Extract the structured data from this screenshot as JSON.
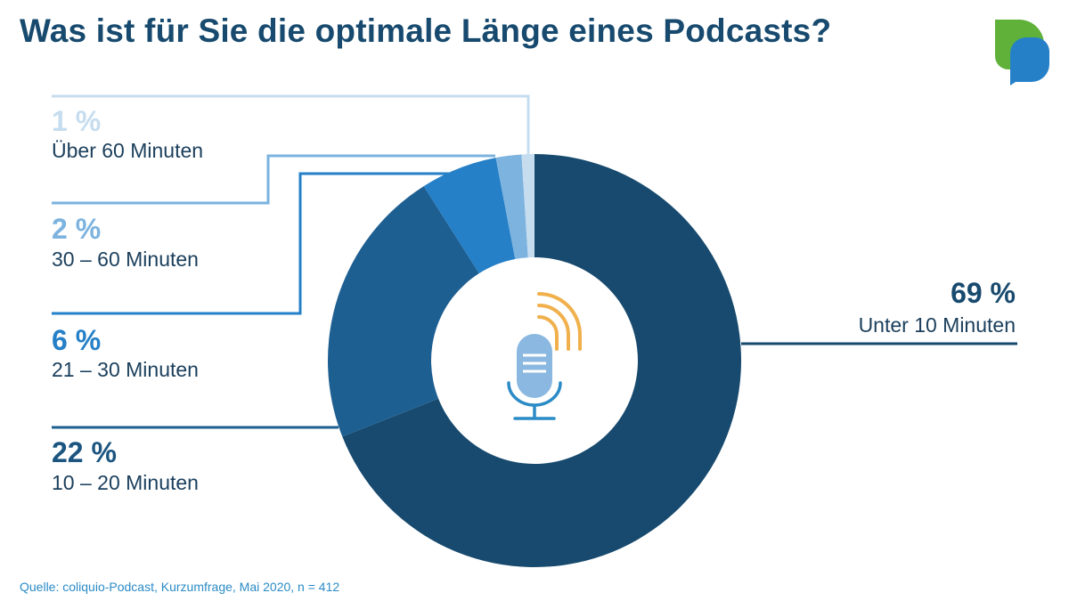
{
  "title": "Was ist für Sie die optimale Länge eines Podcasts?",
  "source": "Quelle: coliquio-Podcast, Kurzumfrage, Mai 2020, n = 412",
  "colors": {
    "title": "#174a6e",
    "unter_10": "#174a6e",
    "10_20": "#1e5f92",
    "21_30": "#2580c8",
    "30_60": "#7cb3df",
    "ueber_60": "#c6ddef",
    "logo_green": "#5fb13a",
    "logo_blue": "#2580c8",
    "mic_body": "#8ab8e0",
    "mic_stand": "#2b8bc6",
    "waves": "#f0b04c"
  },
  "icons": {
    "center": "microphone-icon",
    "brand": "speech-bubble-logo-icon"
  },
  "chart_data": {
    "type": "donut",
    "title": "Was ist für Sie die optimale Länge eines Podcasts?",
    "unit": "%",
    "slices": [
      {
        "label": "Unter 10 Minuten",
        "value": 69,
        "display": "69 %",
        "color": "#174a6e"
      },
      {
        "label": "10 – 20 Minuten",
        "value": 22,
        "display": "22 %",
        "color": "#1e5f92"
      },
      {
        "label": "21 – 30 Minuten",
        "value": 6,
        "display": "6 %",
        "color": "#2580c8"
      },
      {
        "label": "30 – 60 Minuten",
        "value": 2,
        "display": "2 %",
        "color": "#7cb3df"
      },
      {
        "label": "Über 60 Minuten",
        "value": 1,
        "display": "1 %",
        "color": "#c6ddef"
      }
    ]
  }
}
